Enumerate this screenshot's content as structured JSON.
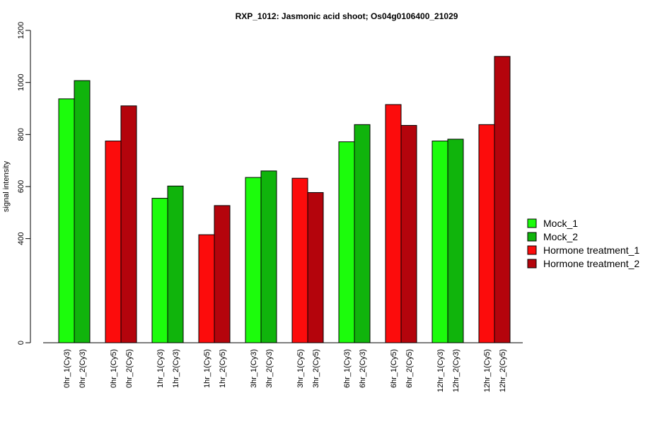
{
  "chart_data": {
    "type": "bar",
    "title": "RXP_1012: Jasmonic acid shoot; Os04g0106400_21029",
    "ylabel": "signal intensity",
    "xlabel": "",
    "ylim": [
      0,
      1200
    ],
    "y_ticks": [
      0,
      400,
      600,
      800,
      1000,
      1200
    ],
    "grid": false,
    "legend_position": "right",
    "legend": [
      {
        "name": "Mock_1",
        "color": "#1cfc0c"
      },
      {
        "name": "Mock_2",
        "color": "#10b40c"
      },
      {
        "name": "Hormone treatment_1",
        "color": "#fc0c0c"
      },
      {
        "name": "Hormone treatment_2",
        "color": "#b4040c"
      }
    ],
    "bars": [
      {
        "label": "0hr_1(Cy3)",
        "value": 937,
        "color": "#1cfc0c"
      },
      {
        "label": "0hr_2(Cy3)",
        "value": 1007,
        "color": "#10b40c"
      },
      {
        "label": "0hr_1(Cy5)",
        "value": 775,
        "color": "#fc0c0c"
      },
      {
        "label": "0hr_2(Cy5)",
        "value": 910,
        "color": "#b4040c"
      },
      {
        "label": "1hr_1(Cy3)",
        "value": 555,
        "color": "#1cfc0c"
      },
      {
        "label": "1hr_2(Cy3)",
        "value": 602,
        "color": "#10b40c"
      },
      {
        "label": "1hr_1(Cy5)",
        "value": 415,
        "color": "#fc0c0c"
      },
      {
        "label": "1hr_2(Cy5)",
        "value": 527,
        "color": "#b4040c"
      },
      {
        "label": "3hr_1(Cy3)",
        "value": 635,
        "color": "#1cfc0c"
      },
      {
        "label": "3hr_2(Cy3)",
        "value": 660,
        "color": "#10b40c"
      },
      {
        "label": "3hr_1(Cy5)",
        "value": 632,
        "color": "#fc0c0c"
      },
      {
        "label": "3hr_2(Cy5)",
        "value": 577,
        "color": "#b4040c"
      },
      {
        "label": "6hr_1(Cy3)",
        "value": 772,
        "color": "#1cfc0c"
      },
      {
        "label": "6hr_2(Cy3)",
        "value": 838,
        "color": "#10b40c"
      },
      {
        "label": "6hr_1(Cy5)",
        "value": 915,
        "color": "#fc0c0c"
      },
      {
        "label": "6hr_2(Cy5)",
        "value": 835,
        "color": "#b4040c"
      },
      {
        "label": "12hr_1(Cy3)",
        "value": 775,
        "color": "#1cfc0c"
      },
      {
        "label": "12hr_2(Cy3)",
        "value": 782,
        "color": "#10b40c"
      },
      {
        "label": "12hr_1(Cy5)",
        "value": 838,
        "color": "#fc0c0c"
      },
      {
        "label": "12hr_2(Cy5)",
        "value": 1100,
        "color": "#b4040c"
      }
    ]
  }
}
